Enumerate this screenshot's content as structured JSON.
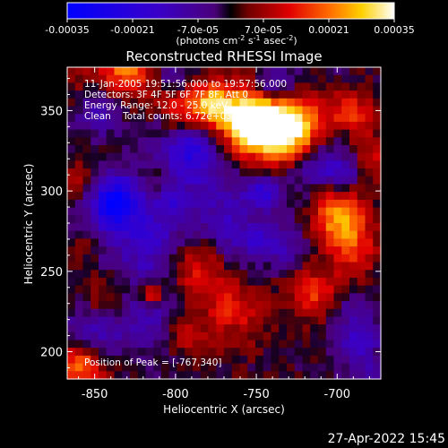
{
  "colorbar": {
    "ticks": [
      "-0.00035",
      "-0.00021",
      "-7.0e-05",
      "7.0e-05",
      "0.00021",
      "0.00035"
    ],
    "range": [
      -0.00035,
      0.00035
    ],
    "units_prefix": "(photons cm",
    "units_exp1": "-2",
    "units_mid": " s",
    "units_exp2": "-1",
    "units_mid2": " asec",
    "units_exp3": "-2",
    "units_suffix": ")"
  },
  "chart_data": {
    "type": "heatmap",
    "title": "Reconstructed RHESSI Image",
    "xlabel": "Heliocentric X (arcsec)",
    "ylabel": "Heliocentric Y (arcsec)",
    "xlim": [
      -867,
      -673
    ],
    "ylim": [
      183,
      377
    ],
    "x_ticks": [
      -850,
      -800,
      -750,
      -700
    ],
    "y_ticks": [
      200,
      250,
      300,
      350
    ],
    "annotations": [
      "11-Jan-2005 19:51:56.000 to 19:57:56.000",
      "Detectors: 3F 4F 5F 6F 7F 8F, Att 0",
      "Energy Range: 12.0 - 25.0 keV",
      "Clean    Total counts: 6.72e+03",
      "Position of Peak = [-767,340]"
    ],
    "peak": {
      "x": -767,
      "y": 340
    },
    "colormap": "blue-purple-red-yellow-white"
  },
  "footer": {
    "timestamp": "27-Apr-2022 15:45"
  }
}
